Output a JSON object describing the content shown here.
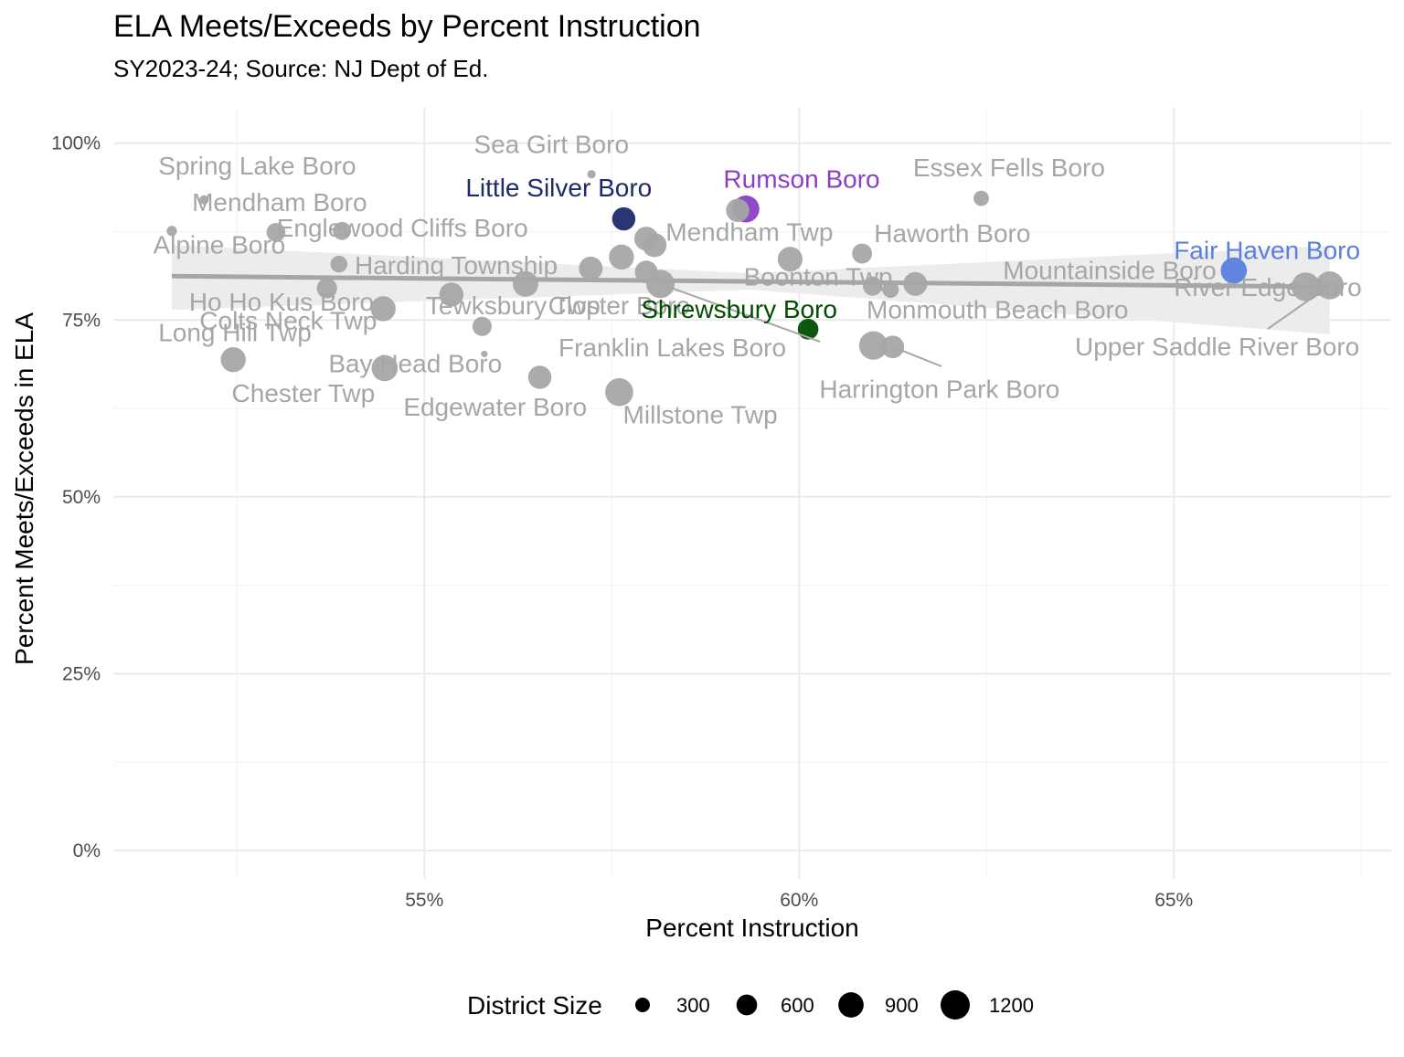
{
  "chart_data": {
    "type": "scatter",
    "title": "ELA Meets/Exceeds by Percent Instruction",
    "subtitle": "SY2023-24; Source: NJ Dept of Ed.",
    "xlabel": "Percent Instruction",
    "ylabel": "Percent Meets/Exceeds in ELA",
    "xlim": [
      0.5085,
      0.679
    ],
    "ylim": [
      -0.04,
      1.05
    ],
    "x_ticks": [
      {
        "value": 0.55,
        "label": "55%"
      },
      {
        "value": 0.6,
        "label": "60%"
      },
      {
        "value": 0.65,
        "label": "65%"
      }
    ],
    "y_ticks": [
      {
        "value": 0.0,
        "label": "0%"
      },
      {
        "value": 0.25,
        "label": "25%"
      },
      {
        "value": 0.5,
        "label": "50%"
      },
      {
        "value": 0.75,
        "label": "75%"
      },
      {
        "value": 1.0,
        "label": "100%"
      }
    ],
    "grid": true,
    "legend": {
      "title": "District Size",
      "position": "bottom",
      "entries": [
        {
          "label": "300",
          "size": 300
        },
        {
          "label": "600",
          "size": 600
        },
        {
          "label": "900",
          "size": 900
        },
        {
          "label": "1200",
          "size": 1200
        }
      ]
    },
    "trend": {
      "x": [
        0.5163,
        0.6708
      ],
      "y": [
        0.812,
        0.797
      ],
      "color": "#a6a6a6",
      "band_color": "#ececec"
    },
    "colors": {
      "default": "#a6a6a6",
      "Little Silver Boro": "#1f2a6b",
      "Rumson Boro": "#8a3fc7",
      "Fair Haven Boro": "#5b7fdf",
      "Shrewsbury Boro": "#004d00"
    },
    "points": [
      {
        "name": "Spring Lake Boro",
        "x": 0.5206,
        "y": 0.92,
        "size": 120
      },
      {
        "name": "Alpine Boro",
        "x": 0.5163,
        "y": 0.876,
        "size": 150
      },
      {
        "name": "Mendham Boro",
        "x": 0.5302,
        "y": 0.874,
        "size": 500
      },
      {
        "name": "Englewood Cliffs Boro",
        "x": 0.539,
        "y": 0.876,
        "size": 460
      },
      {
        "name": "Harding Township",
        "x": 0.5386,
        "y": 0.829,
        "size": 400
      },
      {
        "name": "Ho Ho Kus Boro",
        "x": 0.537,
        "y": 0.795,
        "size": 580
      },
      {
        "name": "Colts Neck Twp",
        "x": 0.5445,
        "y": 0.766,
        "size": 880
      },
      {
        "name": "Long Hill Twp",
        "x": 0.5245,
        "y": 0.694,
        "size": 880
      },
      {
        "name": "Chester Twp",
        "x": 0.5447,
        "y": 0.682,
        "size": 960
      },
      {
        "name": "Tewksbury Twp",
        "x": 0.5536,
        "y": 0.786,
        "size": 820
      },
      {
        "name": "Bay Head Boro",
        "x": 0.558,
        "y": 0.702,
        "size": 60
      },
      {
        "name": "",
        "x": 0.5577,
        "y": 0.741,
        "size": 520
      },
      {
        "name": "",
        "x": 0.5635,
        "y": 0.801,
        "size": 920
      },
      {
        "name": "Edgewater Boro",
        "x": 0.5654,
        "y": 0.669,
        "size": 760
      },
      {
        "name": "Sea Girt Boro",
        "x": 0.5723,
        "y": 0.956,
        "size": 100
      },
      {
        "name": "Closter Boro",
        "x": 0.5722,
        "y": 0.823,
        "size": 780
      },
      {
        "name": "Millstone Twp",
        "x": 0.576,
        "y": 0.648,
        "size": 1100
      },
      {
        "name": "Little Silver Boro",
        "x": 0.5766,
        "y": 0.893,
        "size": 760
      },
      {
        "name": "Mendham Twp",
        "x": 0.5796,
        "y": 0.865,
        "size": 800
      },
      {
        "name": "",
        "x": 0.5763,
        "y": 0.839,
        "size": 880
      },
      {
        "name": "",
        "x": 0.5807,
        "y": 0.856,
        "size": 820
      },
      {
        "name": "",
        "x": 0.5796,
        "y": 0.818,
        "size": 720
      },
      {
        "name": "Franklin Lakes Boro",
        "x": 0.5815,
        "y": 0.801,
        "size": 1120
      },
      {
        "name": "Rumson Boro",
        "x": 0.5929,
        "y": 0.907,
        "size": 1020
      },
      {
        "name": "",
        "x": 0.5918,
        "y": 0.905,
        "size": 760
      },
      {
        "name": "Boonton Twp",
        "x": 0.5988,
        "y": 0.836,
        "size": 860
      },
      {
        "name": "Shrewsbury Boro",
        "x": 0.6012,
        "y": 0.737,
        "size": 600
      },
      {
        "name": "Haworth Boro",
        "x": 0.6084,
        "y": 0.844,
        "size": 560
      },
      {
        "name": "Harrington Park Boro",
        "x": 0.6099,
        "y": 0.714,
        "size": 1140
      },
      {
        "name": "",
        "x": 0.6098,
        "y": 0.798,
        "size": 520
      },
      {
        "name": "",
        "x": 0.6122,
        "y": 0.793,
        "size": 380
      },
      {
        "name": "Monmouth Beach Boro",
        "x": 0.6125,
        "y": 0.712,
        "size": 720
      },
      {
        "name": "Mountainside Boro",
        "x": 0.6155,
        "y": 0.801,
        "size": 800
      },
      {
        "name": "Essex Fells Boro",
        "x": 0.6243,
        "y": 0.922,
        "size": 330
      },
      {
        "name": "Fair Haven Boro",
        "x": 0.658,
        "y": 0.82,
        "size": 960
      },
      {
        "name": "River Edge Boro",
        "x": 0.6676,
        "y": 0.797,
        "size": 1150
      },
      {
        "name": "Upper Saddle River Boro",
        "x": 0.6708,
        "y": 0.799,
        "size": 1100
      }
    ],
    "labels": [
      {
        "text": "Spring Lake Boro",
        "x": 0.5145,
        "y": 0.956
      },
      {
        "text": "Mendham Boro",
        "x": 0.519,
        "y": 0.904
      },
      {
        "text": "Englewood Cliffs Boro",
        "x": 0.5303,
        "y": 0.868
      },
      {
        "text": "Alpine Boro",
        "x": 0.5138,
        "y": 0.844
      },
      {
        "text": "Harding Township",
        "x": 0.5407,
        "y": 0.815
      },
      {
        "text": "Ho Ho Kus Boro",
        "x": 0.5186,
        "y": 0.763
      },
      {
        "text": "Colts Neck Twp",
        "x": 0.52,
        "y": 0.737
      },
      {
        "text": "Long Hill Twp",
        "x": 0.5145,
        "y": 0.72
      },
      {
        "text": "Bay Head Boro",
        "x": 0.5372,
        "y": 0.676
      },
      {
        "text": "Chester Twp",
        "x": 0.5243,
        "y": 0.634
      },
      {
        "text": "Edgewater Boro",
        "x": 0.5472,
        "y": 0.615
      },
      {
        "text": "Tewksbury Twp",
        "x": 0.5502,
        "y": 0.758
      },
      {
        "text": "Closter Boro",
        "x": 0.5665,
        "y": 0.758
      },
      {
        "text": "Sea Girt Boro",
        "x": 0.5566,
        "y": 0.986
      },
      {
        "text": "Little Silver Boro",
        "x": 0.5555,
        "y": 0.925,
        "color_key": "Little Silver Boro"
      },
      {
        "text": "Rumson Boro",
        "x": 0.5899,
        "y": 0.937,
        "color_key": "Rumson Boro"
      },
      {
        "text": "Essex Fells Boro",
        "x": 0.6152,
        "y": 0.953
      },
      {
        "text": "Mendham Twp",
        "x": 0.5822,
        "y": 0.862
      },
      {
        "text": "Haworth Boro",
        "x": 0.61,
        "y": 0.86
      },
      {
        "text": "Boonton Twp",
        "x": 0.5926,
        "y": 0.799
      },
      {
        "text": "Mountainside Boro",
        "x": 0.6272,
        "y": 0.808
      },
      {
        "text": "Fair Haven Boro",
        "x": 0.65,
        "y": 0.836,
        "color_key": "Fair Haven Boro"
      },
      {
        "text": "Shrewsbury Boro",
        "x": 0.5789,
        "y": 0.753,
        "color_key": "Shrewsbury Boro"
      },
      {
        "text": "Monmouth Beach Boro",
        "x": 0.609,
        "y": 0.752
      },
      {
        "text": "River Edge Boro",
        "x": 0.65,
        "y": 0.784
      },
      {
        "text": "Franklin Lakes Boro",
        "x": 0.5679,
        "y": 0.699
      },
      {
        "text": "Upper Saddle River Boro",
        "x": 0.6368,
        "y": 0.7
      },
      {
        "text": "Harrington Park Boro",
        "x": 0.6027,
        "y": 0.64
      },
      {
        "text": "Millstone Twp",
        "x": 0.5765,
        "y": 0.604
      }
    ]
  }
}
